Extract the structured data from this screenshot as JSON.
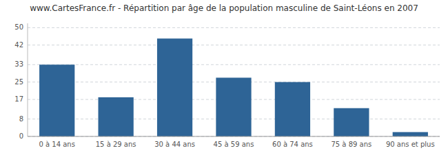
{
  "chart_data": {
    "type": "bar",
    "title": "www.CartesFrance.fr - Répartition par âge de la population masculine de Saint-Léons en 2007",
    "categories": [
      "0 à 14 ans",
      "15 à 29 ans",
      "30 à 44 ans",
      "45 à 59 ans",
      "60 à 74 ans",
      "75 à 89 ans",
      "90 ans et plus"
    ],
    "values": [
      33,
      18,
      45,
      27,
      25,
      13,
      2
    ],
    "color": "#2e6496",
    "ylim": [
      0,
      52
    ],
    "yticks": [
      0,
      8,
      17,
      25,
      33,
      42,
      50
    ],
    "grid": true
  }
}
